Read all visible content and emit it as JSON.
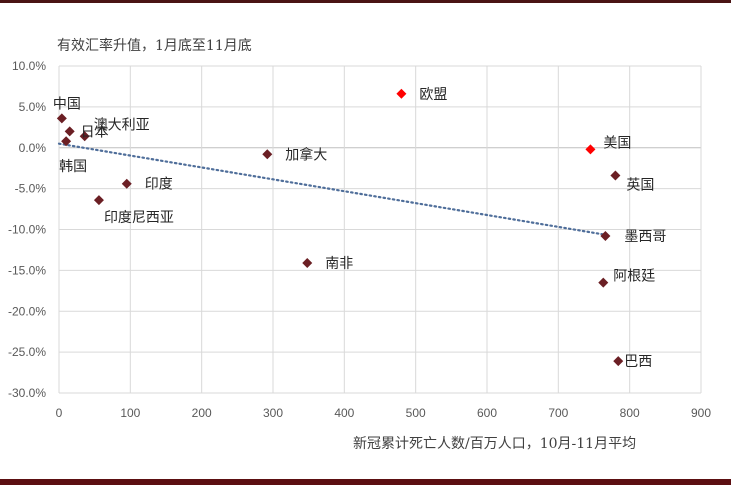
{
  "chart_data": {
    "type": "scatter",
    "title": "有效汇率升值，1月底至11月底",
    "xlabel": "新冠累计死亡人数/百万人口，10月-11月平均",
    "ylabel": "",
    "xlim": [
      0,
      900
    ],
    "ylim": [
      -30,
      10
    ],
    "x_ticks": [
      "0",
      "100",
      "200",
      "300",
      "400",
      "500",
      "600",
      "700",
      "800",
      "900"
    ],
    "y_ticks": [
      "10.0%",
      "5.0%",
      "0.0%",
      "-5.0%",
      "-10.0%",
      "-15.0%",
      "-20.0%",
      "-25.0%",
      "-30.0%"
    ],
    "grid": true,
    "legend": "none",
    "colors": {
      "default": "#6b1f24",
      "highlight": "#ff0000",
      "trendline": "#4f6e9a"
    },
    "points": [
      {
        "name": "中国",
        "x": 4,
        "y": 3.6,
        "highlight": false
      },
      {
        "name": "澳大利亚",
        "x": 15,
        "y": 2.0,
        "highlight": false
      },
      {
        "name": "日本",
        "x": 36,
        "y": 1.4,
        "highlight": false
      },
      {
        "name": "韩国",
        "x": 10,
        "y": 0.8,
        "highlight": false
      },
      {
        "name": "印度",
        "x": 95,
        "y": -4.4,
        "highlight": false
      },
      {
        "name": "印度尼西亚",
        "x": 56,
        "y": -6.4,
        "highlight": false
      },
      {
        "name": "加拿大",
        "x": 292,
        "y": -0.8,
        "highlight": false
      },
      {
        "name": "南非",
        "x": 348,
        "y": -14.1,
        "highlight": false
      },
      {
        "name": "欧盟",
        "x": 480,
        "y": 6.6,
        "highlight": true
      },
      {
        "name": "美国",
        "x": 745,
        "y": -0.2,
        "highlight": true
      },
      {
        "name": "英国",
        "x": 780,
        "y": -3.4,
        "highlight": false
      },
      {
        "name": "墨西哥",
        "x": 766,
        "y": -10.8,
        "highlight": false
      },
      {
        "name": "阿根廷",
        "x": 763,
        "y": -16.5,
        "highlight": false
      },
      {
        "name": "巴西",
        "x": 784,
        "y": -26.1,
        "highlight": false
      }
    ],
    "trendline": {
      "type": "linear",
      "style": "dotted",
      "x": [
        0,
        770
      ],
      "y": [
        0.5,
        -10.7
      ]
    }
  }
}
